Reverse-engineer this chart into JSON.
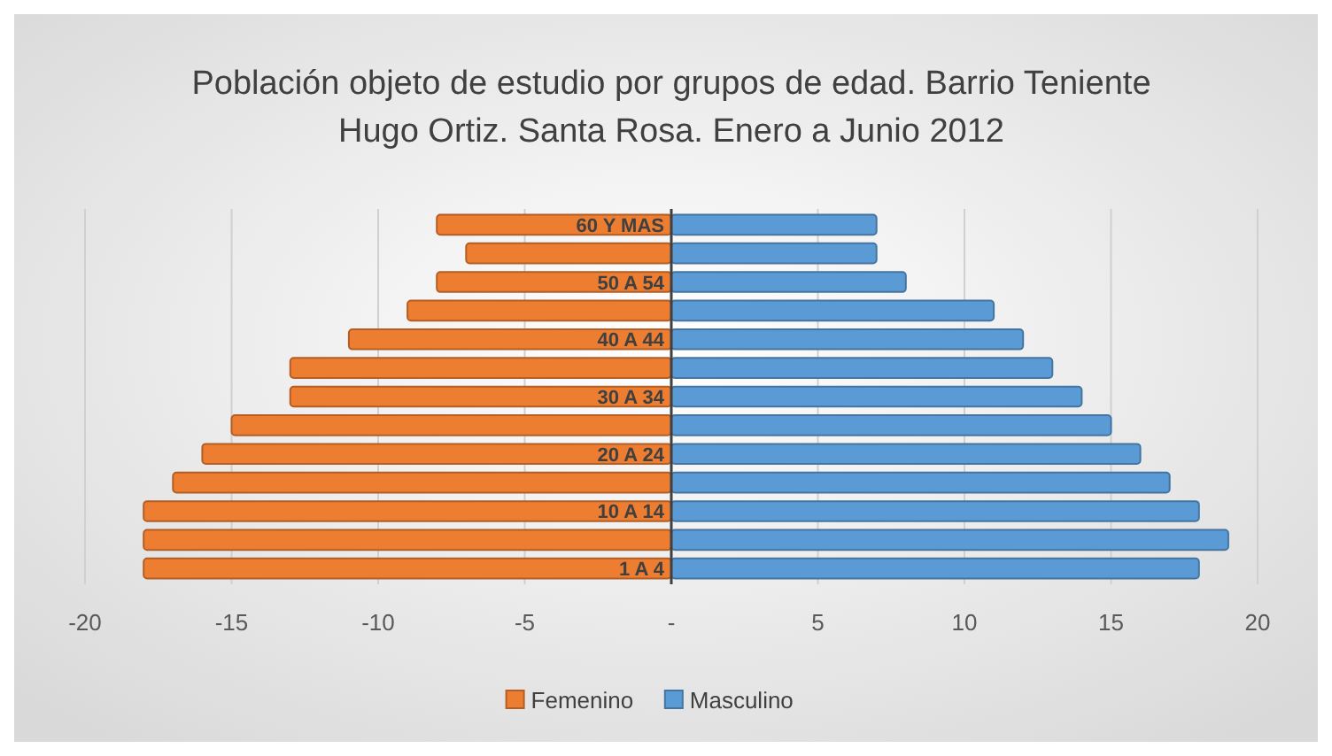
{
  "chart_data": {
    "type": "bar",
    "orientation": "horizontal",
    "stacked": true,
    "title": "Población objeto de estudio por grupos de edad. Barrio Teniente Hugo Ortiz. Santa Rosa. Enero a Junio 2012",
    "categories": [
      "60 Y MAS",
      null,
      "50 A 54",
      null,
      "40 A 44",
      null,
      "30 A 34",
      null,
      "20 A 24",
      null,
      "10 A 14",
      null,
      "1 A 4"
    ],
    "series": [
      {
        "name": "Femenino",
        "color": "#ed7d31",
        "values": [
          -8,
          -7,
          -8,
          -9,
          -11,
          -13,
          -13,
          -15,
          -16,
          -17,
          -18,
          -18,
          -18
        ]
      },
      {
        "name": "Masculino",
        "color": "#5b9bd5",
        "values": [
          7,
          7,
          8,
          11,
          12,
          13,
          14,
          15,
          16,
          17,
          18,
          19,
          18
        ]
      }
    ],
    "xlim": [
      -20,
      20
    ],
    "xticks": [
      -20,
      -15,
      -10,
      -5,
      {
        "value": 0,
        "label": "-"
      },
      5,
      10,
      15,
      20
    ],
    "grid": "x",
    "legend": "bottom"
  }
}
